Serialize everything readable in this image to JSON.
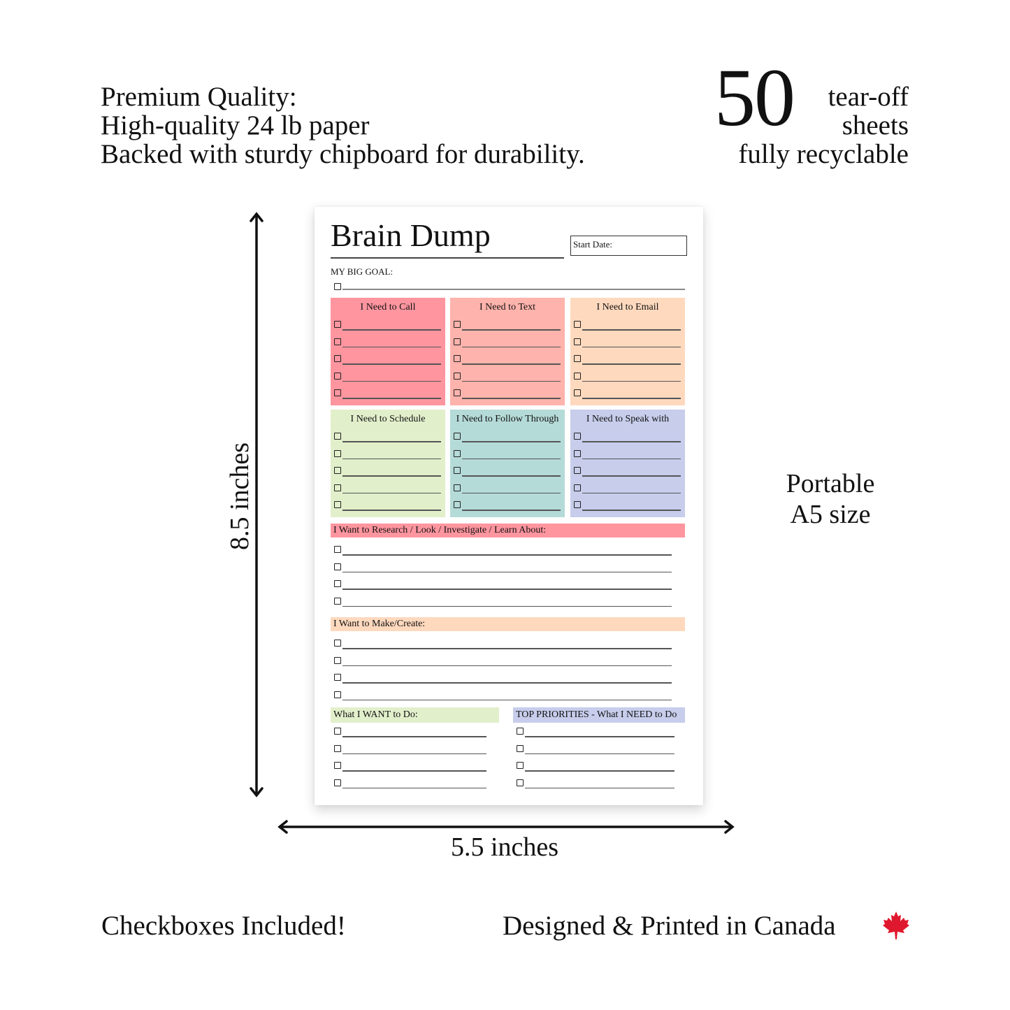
{
  "features": {
    "line1": "Premium Quality:",
    "line2": "High-quality 24 lb paper",
    "line3": "Backed with sturdy chipboard for durability."
  },
  "sheets": {
    "count": "50",
    "line1": "tear-off",
    "line2": "sheets",
    "recyclable": "fully recyclable"
  },
  "size": {
    "line1": "Portable",
    "line2": "A5 size",
    "height": "8.5 inches",
    "width": "5.5 inches"
  },
  "bottom": {
    "checkboxes": "Checkboxes Included!",
    "canada": "Designed & Printed in Canada",
    "maple_icon": "maple-leaf-icon",
    "maple_color": "#e0182d"
  },
  "planner": {
    "title": "Brain Dump",
    "start_date": "Start Date:",
    "big_goal": "MY BIG GOAL:",
    "boxes": [
      {
        "label": "I Need to Call",
        "color": "#fe959f",
        "lines": 5
      },
      {
        "label": "I Need to Text",
        "color": "#feb3ac",
        "lines": 5
      },
      {
        "label": "I Need to Email",
        "color": "#fed9be",
        "lines": 5
      },
      {
        "label": "I Need to Schedule",
        "color": "#e2efcb",
        "lines": 5
      },
      {
        "label": "I Need to Follow Through",
        "color": "#b5dbd8",
        "lines": 5
      },
      {
        "label": "I Need to Speak with",
        "color": "#c7cdeb",
        "lines": 5
      }
    ],
    "research": {
      "label": "I Want to Research / Look / Investigate / Learn About:",
      "color": "#fe959f",
      "lines": 4
    },
    "make": {
      "label": "I Want to Make/Create:",
      "color": "#fed9be",
      "lines": 4
    },
    "want": {
      "label": "What I WANT to Do:",
      "color": "#e2efcb",
      "lines": 4
    },
    "priorities": {
      "label": "TOP PRIORITIES - What I NEED to Do",
      "color": "#c7cdeb",
      "lines": 4
    }
  }
}
